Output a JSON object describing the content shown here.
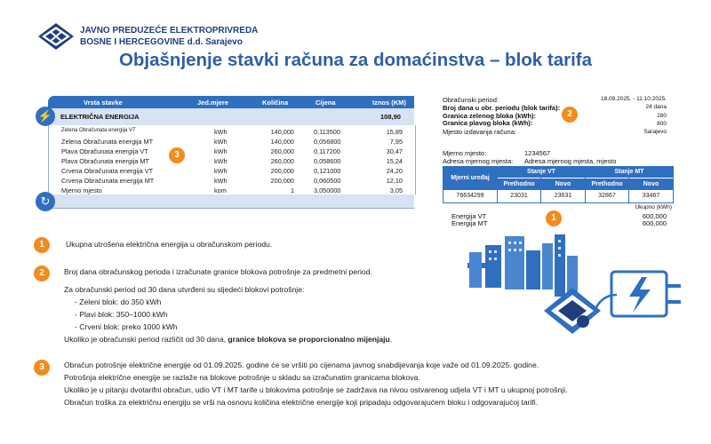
{
  "header": {
    "company_line1": "JAVNO PREDUZEĆE ELEKTROPRIVREDA",
    "company_line2": "BOSNE I HERCEGOVINE  d.d. Sarajevo",
    "title": "Objašnjenje stavki računa za domaćinstva – blok tarifa"
  },
  "bill_table": {
    "columns": [
      "Vrsta stavke",
      "Jed.mjere",
      "Količina",
      "Cijena",
      "Iznos (KM)"
    ],
    "section_label": "ELEKTRIČNA ENERGIJA",
    "section_total": "108,90",
    "rows": [
      {
        "name": "Zelena Obračunata energija VT",
        "unit": "kWh",
        "qty": "140,000",
        "price": "0,113500",
        "amount": "15,89"
      },
      {
        "name": "Zelena Obračunata energija MT",
        "unit": "kWh",
        "qty": "140,000",
        "price": "0,056800",
        "amount": "7,95"
      },
      {
        "name": "Plava Obračunata energija VT",
        "unit": "kWh",
        "qty": "260,000",
        "price": "0,117200",
        "amount": "30,47"
      },
      {
        "name": "Plava Obračunata energija MT",
        "unit": "kWh",
        "qty": "260,000",
        "price": "0,058600",
        "amount": "15,24"
      },
      {
        "name": "Crvena Obračunata energija VT",
        "unit": "kWh",
        "qty": "200,000",
        "price": "0,121000",
        "amount": "24,20"
      },
      {
        "name": "Crvena Obračunata energija MT",
        "unit": "kWh",
        "qty": "200,000",
        "price": "0,060500",
        "amount": "12,10"
      },
      {
        "name": "Mjerno mjesto",
        "unit": "kom",
        "qty": "1",
        "price": "3,050000",
        "amount": "3,05"
      }
    ]
  },
  "billing_info": {
    "period_label": "Obračunski period:",
    "period_value": "18.09.2025. - 11.10.2025.",
    "days_label": "Broj dana u obr. periodu (blok tarifa):",
    "days_value": "24 dana",
    "green_label": "Granica zelenog bloka (kWh):",
    "green_value": "280",
    "blue_label": "Granica plavog bloka (kWh):",
    "blue_value": "800",
    "place_label": "Mjesto izdavanja računa:",
    "place_value": "Sarajevo"
  },
  "meter_info": {
    "point_label": "Mjerno mjesto:",
    "point_value": "1234567",
    "address_label": "Adresa mjernog mjesta:",
    "address_value": "Adresa mjernog mjesta, mjesto",
    "device_header": "Mjerni uređaj",
    "vt_header": "Stanje VT",
    "mt_header": "Stanje MT",
    "prev_label": "Prethodno",
    "new_label": "Novo",
    "device": "76634299",
    "vt_prev": "23031",
    "vt_new": "23631",
    "mt_prev": "32867",
    "mt_new": "33467",
    "total_label": "Ukupno (kWh)",
    "energy_vt_label": "Energija VT",
    "energy_vt_value": "600,000",
    "energy_mt_label": "Energija MT",
    "energy_mt_value": "600,000"
  },
  "badges": {
    "one": "1",
    "two": "2",
    "three": "3"
  },
  "notes": {
    "n1": "Ukupna utrošena električna energija u obračunskom periodu.",
    "n2_line1": "Broj dana obračunskog perioda i izračunate granice blokova potrošnje za predmetni period.",
    "n2_line2": "Za obračunski period od 30 dana utvrđeni su sljedeći blokovi potrošnje:",
    "n2_green": "- Zeleni blok: do 350 kWh",
    "n2_blue": "- Plavi blok: 350–1000 kWh",
    "n2_red": "- Crveni blok: preko 1000 kWh",
    "n2_last_a": "Ukoliko je obračunski period različit od 30 dana, ",
    "n2_last_b": "granice blokova se proporcionalno mijenjaju",
    "n2_last_c": ".",
    "n3_line1": "Obračun potrošnje električne energije od 01.09.2025. godine će se vršiti po cijenama javnog snabdijevanja koje važe od 01.09.2025. godine.",
    "n3_line2": "Potrošnja električne energije se razlaže na blokove potrošnje u skladu sa izračunatim granicama blokova.",
    "n3_line3": "Ukoliko je u pitanju dvotarifni obračun, udio VT i MT tarife u blokovima potrošnje se zadržava na nivou ostvarenog udjela VT i MT u ukupnoj potrošnji.",
    "n3_line4": "Obračun troška za električnu energiju se vrši na osnovu količina električne energije koji pripadaju odgovarajućem bloku i odgovarajućoj tarifi."
  },
  "colors": {
    "accent": "#2f6fc0",
    "badge": "#f28c1c",
    "title": "#2e5fa6"
  }
}
